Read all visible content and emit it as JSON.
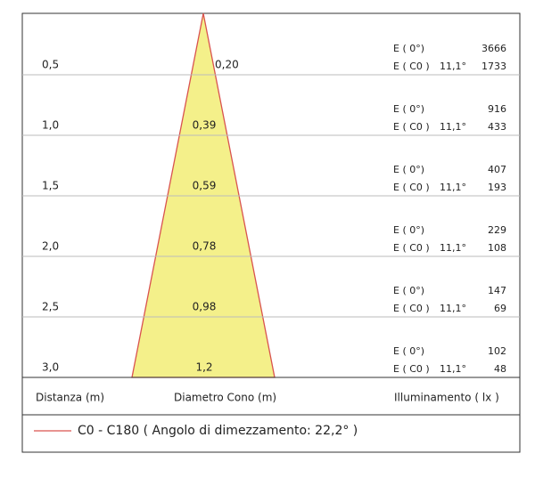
{
  "rows": [
    {
      "distance": "0,5",
      "diameter": "0,20",
      "e0_label": "E ( 0°)",
      "e0": "3666",
      "ec0_label": "E ( C0 )",
      "angle": "11,1°",
      "ec0": "1733"
    },
    {
      "distance": "1,0",
      "diameter": "0,39",
      "e0_label": "E ( 0°)",
      "e0": "916",
      "ec0_label": "E ( C0 )",
      "angle": "11,1°",
      "ec0": "433"
    },
    {
      "distance": "1,5",
      "diameter": "0,59",
      "e0_label": "E ( 0°)",
      "e0": "407",
      "ec0_label": "E ( C0 )",
      "angle": "11,1°",
      "ec0": "193"
    },
    {
      "distance": "2,0",
      "diameter": "0,78",
      "e0_label": "E ( 0°)",
      "e0": "229",
      "ec0_label": "E ( C0 )",
      "angle": "11,1°",
      "ec0": "108"
    },
    {
      "distance": "2,5",
      "diameter": "0,98",
      "e0_label": "E ( 0°)",
      "e0": "147",
      "ec0_label": "E ( C0 )",
      "angle": "11,1°",
      "ec0": "69"
    },
    {
      "distance": "3,0",
      "diameter": "1,2",
      "e0_label": "E ( 0°)",
      "e0": "102",
      "ec0_label": "E ( C0 )",
      "angle": "11,1°",
      "ec0": "48"
    }
  ],
  "footer": {
    "distance": "Distanza (m)",
    "diameter": "Diametro Cono (m)",
    "illuminance": "Illuminamento ( lx )"
  },
  "legend": "C0 - C180  ( Angolo di dimezzamento: 22,2° )"
}
